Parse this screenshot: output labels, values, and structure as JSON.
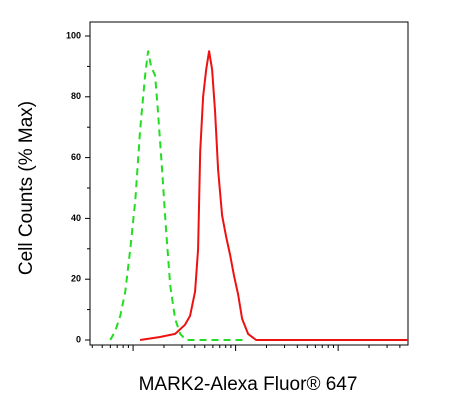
{
  "chart_data": {
    "type": "line",
    "x_label": "MARK2-Alexa Fluor® 647",
    "y_label": "Cell Counts (% Max)",
    "x_log": true,
    "xlim": [
      38,
      48000
    ],
    "xticks": [
      100,
      1000,
      10000
    ],
    "ylim": [
      0,
      100
    ],
    "yticks": [
      0,
      20,
      40,
      60,
      80,
      100
    ],
    "series": [
      {
        "color": "#22dd22",
        "dash": true,
        "x": [
          60,
          67,
          75,
          84,
          94,
          105,
          117,
          131,
          140,
          150,
          164,
          175,
          192,
          210,
          230,
          257,
          288,
          329,
          1240
        ],
        "values": [
          0,
          3,
          8,
          16,
          30,
          46,
          69,
          87,
          95,
          90,
          87,
          75,
          56,
          36,
          18,
          7,
          2,
          0,
          0
        ]
      },
      {
        "color": "#ee1111",
        "dash": false,
        "x": [
          117,
          183,
          257,
          321,
          360,
          403,
          431,
          451,
          482,
          516,
          551,
          590,
          631,
          675,
          738,
          807,
          883,
          966,
          1057,
          1156,
          1324,
          1585,
          4260,
          48000
        ],
        "values": [
          0,
          1,
          2,
          5,
          8,
          16,
          30,
          62,
          80,
          89,
          95,
          89,
          75,
          56,
          41,
          34,
          28,
          21,
          15,
          7,
          2,
          0,
          0,
          0
        ]
      }
    ]
  }
}
